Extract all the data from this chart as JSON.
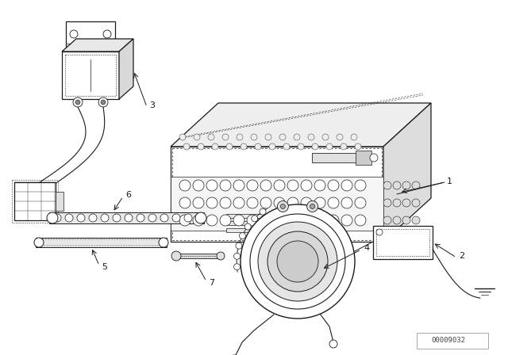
{
  "bg_color": "#ffffff",
  "line_color": "#1a1a1a",
  "part_number": "00009032",
  "fig_width": 6.4,
  "fig_height": 4.48,
  "dpi": 100
}
